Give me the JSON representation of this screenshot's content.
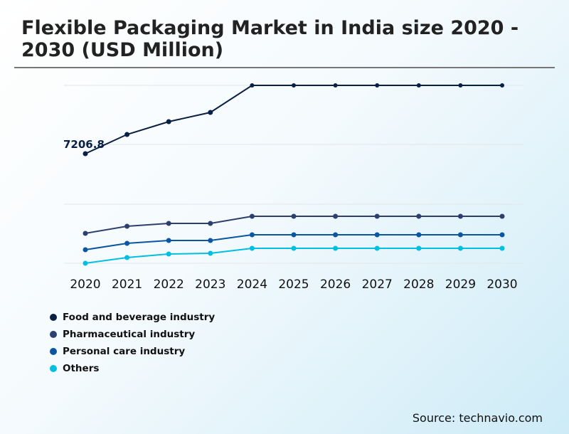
{
  "chart_data": {
    "type": "line",
    "title": "Flexible Packaging Market in India size 2020 - 2030 (USD Million)",
    "x": [
      "2020",
      "2021",
      "2022",
      "2023",
      "2024",
      "2025",
      "2026",
      "2027",
      "2028",
      "2029",
      "2030"
    ],
    "ylim": [
      0,
      11700
    ],
    "grid": true,
    "legend": "bottom-left",
    "annotation": "7206.8",
    "series": [
      {
        "name": "Food and beverage industry",
        "color": "#0a1f44",
        "values": [
          7206.8,
          8470,
          9313,
          9921,
          11700,
          11700,
          11700,
          11700,
          11700,
          11700,
          11700
        ]
      },
      {
        "name": "Pharmaceutical industry",
        "color": "#2e3f6e",
        "values": [
          1966,
          2434,
          2621,
          2621,
          3089,
          3089,
          3089,
          3089,
          3089,
          3089,
          3089
        ]
      },
      {
        "name": "Personal care industry",
        "color": "#0a56a0",
        "values": [
          889,
          1310,
          1498,
          1498,
          1872,
          1872,
          1872,
          1872,
          1872,
          1872,
          1872
        ]
      },
      {
        "name": "Others",
        "color": "#00bfe0",
        "values": [
          0,
          374,
          608,
          655,
          983,
          983,
          983,
          983,
          983,
          983,
          983
        ]
      }
    ]
  },
  "source": "Source: technavio.com"
}
